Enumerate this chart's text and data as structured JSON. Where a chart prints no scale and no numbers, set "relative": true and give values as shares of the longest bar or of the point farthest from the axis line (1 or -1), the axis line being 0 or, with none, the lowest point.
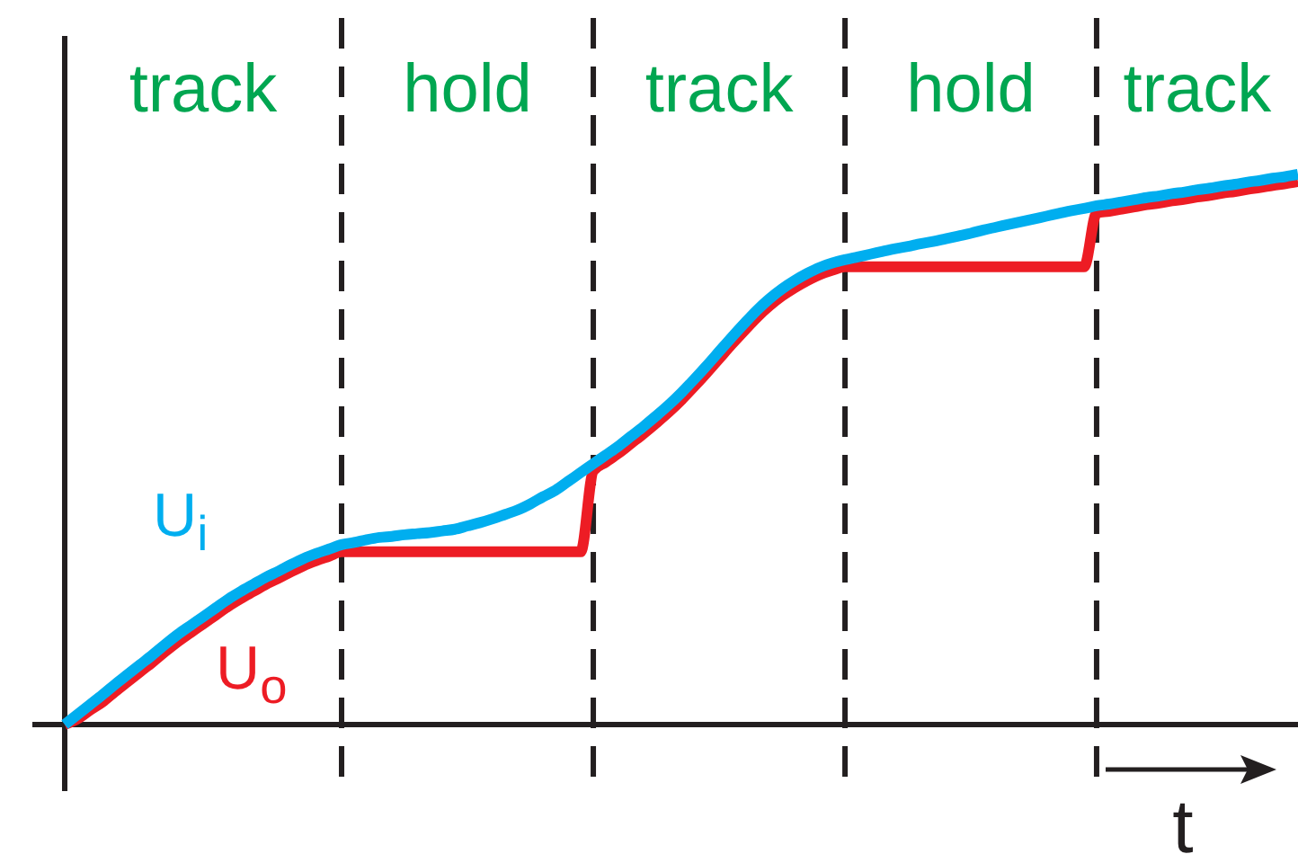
{
  "chart_data": {
    "type": "line",
    "relative": true,
    "xlabel": "t",
    "grid": "x",
    "categories": [
      null,
      null,
      null,
      null,
      null,
      null,
      null,
      null,
      null,
      null,
      null,
      null,
      null,
      null,
      null,
      null,
      null,
      null,
      null,
      null,
      null,
      null,
      null,
      null,
      null,
      null,
      null,
      null,
      null,
      null,
      null,
      null,
      null,
      null,
      null,
      null,
      null,
      null,
      null,
      null,
      null,
      null,
      null,
      null,
      null,
      null,
      null,
      null,
      null,
      null,
      null,
      null,
      null,
      null,
      null,
      null,
      null,
      null,
      null,
      null,
      null,
      null,
      null,
      null,
      null,
      null,
      null,
      null,
      null,
      null,
      null,
      null,
      null,
      null,
      null,
      null,
      null,
      null,
      null,
      null,
      null,
      null,
      null,
      null,
      null,
      null,
      null,
      null,
      null,
      null,
      null,
      null,
      null,
      null,
      null,
      null,
      null,
      null,
      null
    ],
    "series": [
      {
        "name": "U$_{i}$",
        "color": "#00aeef",
        "values": [
          0,
          0.018,
          0.036,
          0.054,
          0.073,
          0.091,
          0.109,
          0.127,
          0.146,
          0.164,
          0.18,
          0.196,
          0.212,
          0.228,
          0.242,
          0.255,
          0.268,
          0.279,
          0.291,
          0.302,
          0.311,
          0.319,
          0.327,
          0.331,
          0.336,
          0.34,
          0.342,
          0.345,
          0.347,
          0.349,
          0.352,
          0.355,
          0.361,
          0.367,
          0.374,
          0.382,
          0.39,
          0.401,
          0.414,
          0.426,
          0.442,
          0.458,
          0.474,
          0.49,
          0.506,
          0.524,
          0.542,
          0.561,
          0.581,
          0.603,
          0.627,
          0.652,
          0.678,
          0.704,
          0.729,
          0.753,
          0.774,
          0.792,
          0.807,
          0.82,
          0.831,
          0.839,
          0.845,
          0.85,
          0.855,
          0.86,
          0.865,
          0.869,
          0.874,
          0.878,
          0.883,
          0.888,
          0.893,
          0.899,
          0.904,
          0.909,
          0.914,
          0.919,
          0.924,
          0.929,
          0.934,
          0.938,
          0.943,
          0.946,
          0.95,
          0.954,
          0.958,
          0.961,
          0.965,
          0.968,
          0.972,
          0.975,
          0.979,
          0.982,
          0.986,
          0.989,
          0.993,
          0.996,
          1
        ]
      },
      {
        "name": "U$_{o}$",
        "color": "#ed1c24",
        "values": [
          0,
          0.01,
          0.026,
          0.041,
          0.06,
          0.078,
          0.096,
          0.114,
          0.133,
          0.151,
          0.167,
          0.183,
          0.199,
          0.215,
          0.229,
          0.242,
          0.255,
          0.266,
          0.278,
          0.289,
          0.298,
          0.306,
          0.314,
          0.314,
          0.314,
          0.314,
          0.314,
          0.314,
          0.314,
          0.314,
          0.314,
          0.314,
          0.314,
          0.314,
          0.314,
          0.314,
          0.314,
          0.314,
          0.314,
          0.314,
          0.314,
          0.314,
          0.461,
          0.477,
          0.493,
          0.511,
          0.529,
          0.548,
          0.568,
          0.59,
          0.614,
          0.639,
          0.665,
          0.691,
          0.716,
          0.74,
          0.761,
          0.779,
          0.794,
          0.807,
          0.818,
          0.826,
          0.832,
          0.832,
          0.832,
          0.832,
          0.832,
          0.832,
          0.832,
          0.832,
          0.832,
          0.832,
          0.832,
          0.832,
          0.832,
          0.832,
          0.832,
          0.832,
          0.832,
          0.832,
          0.832,
          0.832,
          0.93,
          0.933,
          0.937,
          0.941,
          0.945,
          0.948,
          0.952,
          0.955,
          0.959,
          0.962,
          0.966,
          0.969,
          0.973,
          0.976,
          0.98,
          0.983,
          0.987
        ]
      }
    ],
    "annotations": [
      "track",
      "hold",
      "track",
      "hold",
      "track"
    ]
  }
}
